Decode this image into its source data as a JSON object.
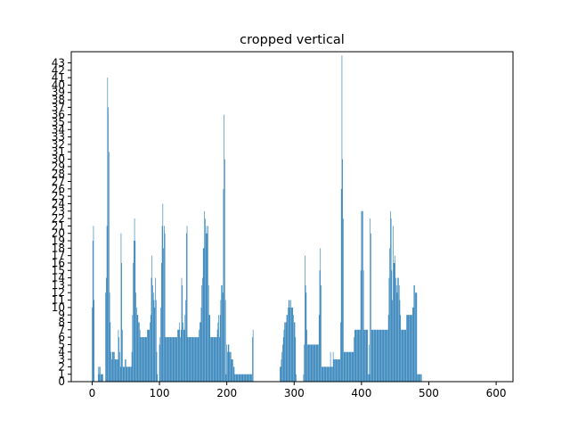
{
  "chart_data": {
    "type": "bar",
    "title": "cropped vertical",
    "xlabel": "",
    "ylabel": "",
    "xlim": [
      -31,
      625
    ],
    "ylim": [
      0,
      44.5
    ],
    "x_ticks": [
      "0",
      "100",
      "200",
      "300",
      "400",
      "500",
      "600"
    ],
    "y_ticks": [
      "0",
      "1",
      "2",
      "3",
      "4",
      "5",
      "6",
      "7",
      "8",
      "9",
      "10",
      "11",
      "12",
      "13",
      "14",
      "15",
      "16",
      "17",
      "18",
      "19",
      "20",
      "21",
      "22",
      "23",
      "24",
      "25",
      "26",
      "27",
      "28",
      "29",
      "30",
      "31",
      "32",
      "33",
      "34",
      "35",
      "36",
      "37",
      "38",
      "39",
      "40",
      "41",
      "42",
      "43"
    ],
    "grid": false,
    "bar_color": "#1f77b4",
    "values": [
      10,
      19,
      21,
      11,
      0,
      0,
      0,
      0,
      0,
      2,
      1,
      2,
      2,
      1,
      1,
      1,
      1,
      0,
      0,
      0,
      12,
      14,
      21,
      41,
      37,
      31,
      12,
      8,
      4,
      3,
      4,
      4,
      4,
      4,
      3,
      3,
      3,
      3,
      3,
      7,
      6,
      4,
      2,
      20,
      16,
      7,
      2,
      2,
      2,
      3,
      3,
      2,
      2,
      2,
      2,
      2,
      2,
      2,
      2,
      4,
      9,
      16,
      19,
      22,
      19,
      12,
      10,
      9,
      9,
      8,
      8,
      7,
      6,
      6,
      6,
      6,
      6,
      6,
      6,
      6,
      6,
      6,
      7,
      7,
      7,
      7,
      8,
      9,
      14,
      17,
      13,
      12,
      11,
      10,
      14,
      11,
      4,
      1,
      0,
      0,
      5,
      6,
      10,
      16,
      21,
      24,
      18,
      21,
      20,
      6,
      6,
      6,
      6,
      6,
      6,
      6,
      6,
      6,
      6,
      6,
      6,
      6,
      6,
      6,
      6,
      6,
      6,
      7,
      7,
      7,
      8,
      6,
      7,
      14,
      13,
      8,
      7,
      7,
      9,
      11,
      20,
      21,
      6,
      6,
      6,
      6,
      6,
      6,
      6,
      6,
      6,
      6,
      6,
      6,
      6,
      6,
      6,
      6,
      6,
      7,
      8,
      8,
      10,
      13,
      14,
      18,
      18,
      23,
      22,
      20,
      21,
      20,
      21,
      13,
      9,
      9,
      6,
      6,
      6,
      6,
      6,
      6,
      6,
      6,
      6,
      6,
      7,
      8,
      9,
      6,
      9,
      11,
      13,
      13,
      12,
      26,
      36,
      30,
      11,
      1,
      5,
      4,
      5,
      5,
      4,
      4,
      4,
      3,
      3,
      3,
      2,
      2,
      1,
      1,
      1,
      1,
      1,
      1,
      1,
      1,
      1,
      1,
      1,
      1,
      1,
      1,
      1,
      1,
      1,
      1,
      1,
      1,
      1,
      1,
      1,
      1,
      1,
      1,
      6,
      7,
      0,
      0,
      0,
      0,
      0,
      0,
      0,
      0,
      0,
      0,
      0,
      0,
      0,
      0,
      0,
      0,
      0,
      0,
      0,
      0,
      0,
      0,
      0,
      0,
      0,
      0,
      0,
      0,
      0,
      0,
      0,
      0,
      0,
      0,
      0,
      0,
      0,
      0,
      0,
      2,
      2,
      3,
      4,
      5,
      6,
      7,
      8,
      8,
      8,
      9,
      9,
      10,
      11,
      11,
      10,
      11,
      10,
      10,
      10,
      9,
      8,
      8,
      6,
      1,
      0,
      0,
      0,
      0,
      0,
      0,
      0,
      0,
      0,
      0,
      1,
      5,
      17,
      13,
      12,
      7,
      5,
      5,
      5,
      5,
      5,
      5,
      5,
      5,
      5,
      5,
      5,
      5,
      5,
      5,
      5,
      5,
      5,
      9,
      15,
      18,
      13,
      2,
      2,
      2,
      2,
      2,
      2,
      2,
      2,
      2,
      2,
      2,
      2,
      2,
      4,
      2,
      2,
      2,
      4,
      3,
      3,
      3,
      3,
      3,
      3,
      3,
      3,
      3,
      3,
      8,
      26,
      44,
      30,
      22,
      4,
      4,
      4,
      4,
      4,
      4,
      4,
      4,
      4,
      4,
      4,
      4,
      4,
      4,
      4,
      6,
      7,
      7,
      7,
      7,
      7,
      7,
      7,
      7,
      7,
      15,
      23,
      23,
      23,
      15,
      7,
      7,
      7,
      7,
      7,
      7,
      1,
      5,
      1,
      22,
      20,
      7,
      7,
      7,
      7,
      7,
      7,
      7,
      7,
      7,
      7,
      7,
      7,
      7,
      7,
      7,
      7,
      7,
      7,
      7,
      7,
      7,
      7,
      7,
      7,
      7,
      9,
      14,
      18,
      23,
      22,
      15,
      11,
      21,
      16,
      16,
      17,
      14,
      13,
      12,
      14,
      14,
      13,
      11,
      9,
      7,
      7,
      7,
      7,
      7,
      7,
      7,
      7,
      9,
      9,
      9,
      9,
      9,
      9,
      9,
      9,
      9,
      10,
      10,
      13,
      13,
      12,
      12,
      12,
      1,
      1,
      1,
      1,
      1,
      1,
      1,
      0,
      0,
      0,
      0,
      0,
      0,
      0,
      0,
      0,
      0,
      0,
      0,
      0,
      0,
      0,
      0,
      0,
      0,
      0,
      0,
      0,
      0,
      0,
      0,
      0,
      0,
      0,
      0,
      0,
      0,
      0,
      0,
      0,
      0,
      0,
      0,
      0,
      0,
      0,
      0,
      0,
      0,
      0,
      0,
      0,
      0,
      0,
      0,
      0,
      0,
      0,
      0,
      0,
      0,
      0,
      0,
      0,
      0,
      0,
      0,
      0,
      0,
      0,
      0,
      0,
      0,
      0,
      0,
      0,
      0,
      0,
      0,
      0,
      0,
      0,
      0,
      0,
      0,
      0,
      0,
      0,
      0,
      0,
      0,
      0,
      0,
      0,
      0,
      0,
      0,
      0,
      0,
      0,
      0,
      0,
      0,
      0,
      0,
      0,
      0,
      0,
      0,
      0,
      0,
      0,
      0,
      0,
      0,
      0,
      0,
      0,
      0,
      0,
      0,
      0,
      0,
      0,
      0,
      0,
      0,
      0,
      0,
      0,
      0,
      0,
      0,
      0,
      0,
      0,
      0,
      0,
      0,
      0,
      0,
      0,
      0,
      0,
      0,
      0,
      0,
      0,
      0,
      0,
      0,
      0,
      0,
      0,
      0,
      0,
      0,
      0,
      0,
      0,
      0,
      0,
      0,
      0,
      0,
      0,
      0,
      0,
      0,
      0,
      0,
      0,
      0,
      0,
      0,
      0,
      0,
      0,
      0,
      0,
      0,
      0,
      0,
      0,
      0,
      0,
      0,
      0,
      0,
      0,
      0,
      0,
      0,
      0,
      0,
      0,
      0,
      0,
      0,
      0,
      0,
      0,
      0,
      0,
      0,
      0,
      0,
      0,
      0,
      0,
      0,
      0,
      0,
      0,
      0,
      0,
      0,
      0,
      0,
      0,
      0,
      0,
      0,
      0,
      0,
      0,
      0,
      0,
      0,
      0,
      0,
      0,
      0,
      0,
      0,
      0,
      0,
      0,
      0,
      0,
      0,
      0,
      0,
      0,
      0,
      0,
      0,
      0,
      0,
      0,
      0,
      0,
      0,
      0,
      0,
      0,
      0,
      0,
      0,
      0,
      0,
      0,
      0,
      0,
      0,
      0,
      0,
      0,
      0,
      0,
      0,
      0,
      0,
      0,
      0,
      0,
      0,
      0,
      0,
      0,
      0,
      0,
      0,
      0,
      0,
      0,
      0,
      0,
      0,
      0,
      0,
      0,
      0,
      0,
      0,
      0,
      0,
      0,
      0,
      0,
      0,
      0,
      0,
      0,
      0,
      0,
      0,
      0,
      0,
      0,
      0,
      0,
      0,
      0,
      0,
      0,
      0
    ],
    "x_start": 0
  }
}
